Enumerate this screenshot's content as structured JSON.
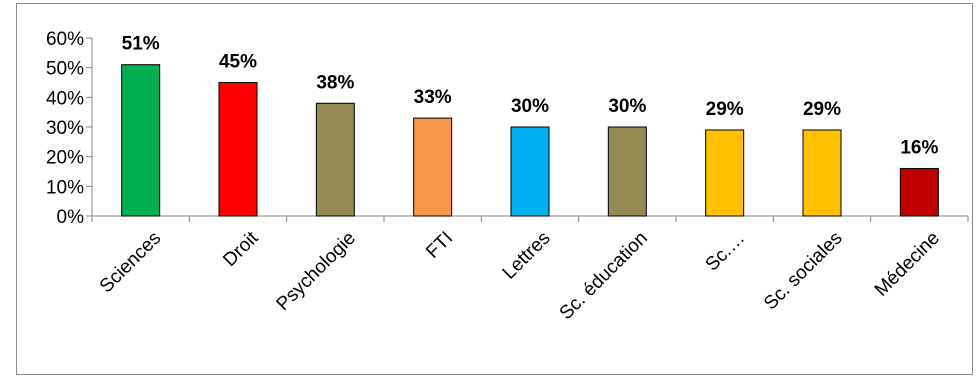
{
  "chart_data": {
    "type": "bar",
    "title": "",
    "xlabel": "",
    "ylabel": "",
    "ylim": [
      0,
      0.6
    ],
    "y_ticks": [
      0,
      0.1,
      0.2,
      0.3,
      0.4,
      0.5,
      0.6
    ],
    "y_tick_labels": [
      "0%",
      "10%",
      "20%",
      "30%",
      "40%",
      "50%",
      "60%"
    ],
    "grid": false,
    "legend": "none",
    "categories": [
      "Sciences",
      "Droit",
      "Psychologie",
      "FTI",
      "Lettres",
      "Sc. éducation",
      "Sc.…",
      "Sc. sociales",
      "Médecine"
    ],
    "values": [
      0.51,
      0.45,
      0.38,
      0.33,
      0.3,
      0.3,
      0.29,
      0.29,
      0.16
    ],
    "data_labels": [
      "51%",
      "45%",
      "38%",
      "33%",
      "30%",
      "30%",
      "29%",
      "29%",
      "16%"
    ],
    "bar_colors": [
      "#00b050",
      "#ff0000",
      "#948a54",
      "#f79646",
      "#00b0f0",
      "#948a54",
      "#ffc000",
      "#ffc000",
      "#c00000"
    ]
  }
}
